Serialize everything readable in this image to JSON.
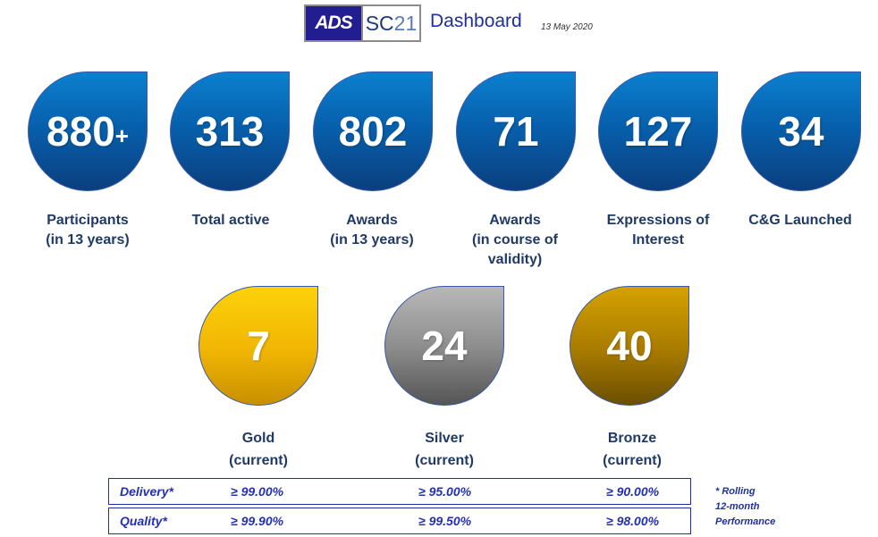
{
  "header": {
    "logo_left": "ADS",
    "logo_right_main": "SC",
    "logo_right_light": "21",
    "title": "Dashboard",
    "date": "13 May 2020"
  },
  "stats": [
    {
      "value": "880",
      "suffix": "+",
      "label": [
        "Participants",
        "(in 13 years)"
      ]
    },
    {
      "value": "313",
      "suffix": "",
      "label": [
        "Total active"
      ]
    },
    {
      "value": "802",
      "suffix": "",
      "label": [
        "Awards",
        "(in 13 years)"
      ]
    },
    {
      "value": "71",
      "suffix": "",
      "label": [
        "Awards",
        "(in course of",
        "validity)"
      ]
    },
    {
      "value": "127",
      "suffix": "",
      "label": [
        "Expressions of",
        "Interest"
      ]
    },
    {
      "value": "34",
      "suffix": "",
      "label": [
        "C&G Launched"
      ]
    }
  ],
  "medals": [
    {
      "value": "7",
      "label": [
        "Gold",
        "(current)"
      ],
      "color": "#f0b503"
    },
    {
      "value": "24",
      "label": [
        "Silver",
        "(current)"
      ],
      "color": "#8e8e8e"
    },
    {
      "value": "40",
      "label": [
        "Bronze",
        "(current)"
      ],
      "color": "#a87a00"
    }
  ],
  "performance": [
    {
      "metric": "Delivery*",
      "gold": "≥ 99.00%",
      "silver": "≥ 95.00%",
      "bronze": "≥ 90.00%"
    },
    {
      "metric": "Quality*",
      "gold": "≥ 99.90%",
      "silver": "≥ 99.50%",
      "bronze": "≥ 98.00%"
    }
  ],
  "footnote": [
    "* Rolling",
    "12-month",
    "Performance"
  ],
  "colors": {
    "accent_blue": "#0760ad",
    "text_navy": "#1f3a66",
    "table_blue": "#2430b0"
  }
}
